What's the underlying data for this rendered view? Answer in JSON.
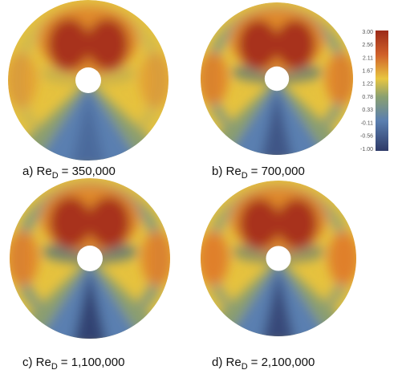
{
  "panels": [
    {
      "label": "a) Re",
      "subscript": "D",
      "value": "= 350,000"
    },
    {
      "label": "b) Re",
      "subscript": "D",
      "value": "= 700,000"
    },
    {
      "label": "c) Re",
      "subscript": "D",
      "value": "= 1,100,000"
    },
    {
      "label": "d) Re",
      "subscript": "D",
      "value": "= 2,100,000"
    }
  ],
  "colorbar": {
    "labels": [
      "3.00",
      "2.56",
      "2.11",
      "1.67",
      "1.22",
      "0.78",
      "0.33",
      "-0.11",
      "-0.56",
      "-1.00"
    ]
  }
}
